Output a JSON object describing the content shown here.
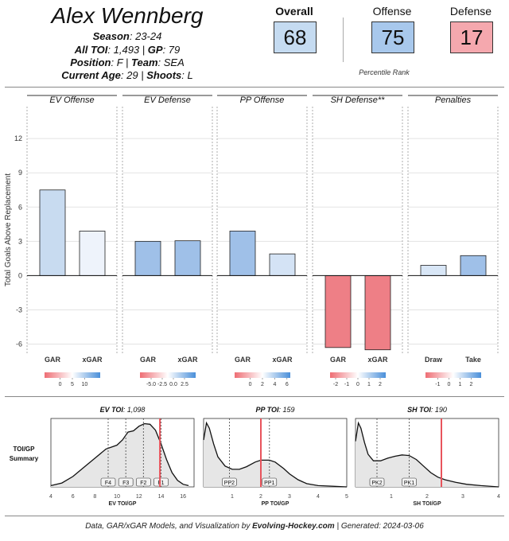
{
  "player": {
    "name": "Alex Wennberg",
    "season_label": "Season",
    "season": ": 23-24",
    "toi_label": "All TOI",
    "toi": ": 1,493 | ",
    "gp_label": "GP",
    "gp": ": 79",
    "pos_label": "Position",
    "pos": ": F | ",
    "team_label": "Team",
    "team": ": SEA",
    "age_label": "Current Age",
    "age": ": 29 | ",
    "shoots_label": "Shoots",
    "shoots": ": L"
  },
  "scores": {
    "overall_label": "Overall",
    "overall": "68",
    "offense_label": "Offense",
    "offense": "75",
    "defense_label": "Defense",
    "defense": "17",
    "percentile_caption": "Percentile Rank",
    "colors": {
      "overall": "#c5dbf1",
      "offense": "#a8c8ec",
      "defense": "#f5a8ae"
    }
  },
  "chart_data": [
    {
      "type": "bar",
      "ylabel": "Total Goals Above Replacement",
      "ylim": [
        -6.8,
        14.8
      ],
      "yticks": [
        -6,
        -3,
        0,
        3,
        6,
        9,
        12
      ],
      "panels": [
        {
          "title": "EV Offense",
          "categories": [
            "GAR",
            "xGAR"
          ],
          "values": [
            7.5,
            3.9
          ],
          "bar_colors": [
            "#c8dbf0",
            "#eef3fb"
          ],
          "legend_ticks": [
            "0",
            "5",
            "10"
          ],
          "legend_tick_pos": [
            0.28,
            0.5,
            0.72
          ]
        },
        {
          "title": "EV Defense",
          "categories": [
            "GAR",
            "xGAR"
          ],
          "values": [
            3.0,
            3.05
          ],
          "bar_colors": [
            "#9fc0e8",
            "#9fc0e8"
          ],
          "legend_ticks": [
            "-5.0",
            "-2.5",
            "0.0",
            "2.5"
          ],
          "legend_tick_pos": [
            0.2,
            0.4,
            0.6,
            0.8
          ]
        },
        {
          "title": "PP Offense",
          "categories": [
            "GAR",
            "xGAR"
          ],
          "values": [
            3.9,
            1.9
          ],
          "bar_colors": [
            "#9fc0e8",
            "#d4e3f5"
          ],
          "legend_ticks": [
            "0",
            "2",
            "4",
            "6"
          ],
          "legend_tick_pos": [
            0.28,
            0.5,
            0.72,
            0.94
          ]
        },
        {
          "title": "SH Defense**",
          "categories": [
            "GAR",
            "xGAR"
          ],
          "values": [
            -6.3,
            -6.5
          ],
          "bar_colors": [
            "#ee7f86",
            "#ee7f86"
          ],
          "legend_ticks": [
            "-2",
            "-1",
            "0",
            "1",
            "2"
          ],
          "legend_tick_pos": [
            0.1,
            0.3,
            0.5,
            0.7,
            0.9
          ]
        },
        {
          "title": "Penalties",
          "categories": [
            "Draw",
            "Take"
          ],
          "values": [
            0.9,
            1.75
          ],
          "bar_colors": [
            "#d8e6f6",
            "#9fc0e8"
          ],
          "legend_ticks": [
            "-1",
            "0",
            "1",
            "2"
          ],
          "legend_tick_pos": [
            0.22,
            0.42,
            0.62,
            0.82
          ]
        }
      ]
    },
    {
      "type": "area",
      "row_label_1": "TOI/GP",
      "row_label_2": "Summary",
      "panels": [
        {
          "title_label": "EV TOI",
          "title_value": ": 1,098",
          "xlabel": "EV TOI/GP",
          "xlim": [
            4,
            17
          ],
          "xticks": [
            4,
            6,
            8,
            10,
            12,
            14,
            16
          ],
          "player_value": 13.9,
          "curve_x": [
            4,
            5,
            6,
            7,
            8,
            9,
            10,
            10.5,
            11,
            11.5,
            12,
            12.5,
            13,
            13.5,
            14,
            14.5,
            15,
            15.5,
            16,
            16.5
          ],
          "curve_y": [
            0.02,
            0.06,
            0.16,
            0.3,
            0.44,
            0.58,
            0.64,
            0.72,
            0.84,
            0.86,
            0.93,
            0.97,
            0.96,
            0.87,
            0.66,
            0.42,
            0.22,
            0.1,
            0.04,
            0.02
          ],
          "markers": [
            {
              "label": "F4",
              "x": 9.2
            },
            {
              "label": "F3",
              "x": 10.8
            },
            {
              "label": "F2",
              "x": 12.4
            },
            {
              "label": "F1",
              "x": 14.0
            }
          ]
        },
        {
          "title_label": "PP TOI",
          "title_value": ": 159",
          "xlabel": "PP TOI/GP",
          "xlim": [
            0,
            5
          ],
          "xticks": [
            1,
            2,
            3,
            4,
            5
          ],
          "player_value": 2.0,
          "curve_x": [
            0,
            0.1,
            0.2,
            0.35,
            0.5,
            0.75,
            1.0,
            1.25,
            1.5,
            1.8,
            2.0,
            2.3,
            2.5,
            2.8,
            3.0,
            3.3,
            3.6,
            4.0,
            4.5,
            5.0
          ],
          "curve_y": [
            0.72,
            0.98,
            0.9,
            0.66,
            0.46,
            0.32,
            0.27,
            0.27,
            0.31,
            0.38,
            0.41,
            0.41,
            0.38,
            0.28,
            0.2,
            0.11,
            0.05,
            0.02,
            0.01,
            0.0
          ],
          "markers": [
            {
              "label": "PP2",
              "x": 0.9
            },
            {
              "label": "PP1",
              "x": 2.3
            }
          ]
        },
        {
          "title_label": "SH TOI",
          "title_value": ": 190",
          "xlabel": "SH TOI/GP",
          "xlim": [
            0,
            4
          ],
          "xticks": [
            1,
            2,
            3,
            4
          ],
          "player_value": 2.4,
          "curve_x": [
            0,
            0.08,
            0.15,
            0.25,
            0.35,
            0.5,
            0.7,
            0.9,
            1.1,
            1.3,
            1.5,
            1.7,
            1.9,
            2.1,
            2.3,
            2.5,
            2.8,
            3.1,
            3.5,
            4.0
          ],
          "curve_y": [
            0.7,
            0.98,
            0.9,
            0.68,
            0.5,
            0.4,
            0.4,
            0.44,
            0.47,
            0.49,
            0.48,
            0.42,
            0.32,
            0.22,
            0.15,
            0.11,
            0.07,
            0.04,
            0.02,
            0.0
          ],
          "markers": [
            {
              "label": "PK2",
              "x": 0.6
            },
            {
              "label": "PK1",
              "x": 1.5
            }
          ]
        }
      ]
    }
  ],
  "footer": {
    "prefix": "Data, GAR/xGAR Models, and Visualization by ",
    "brand": "Evolving-Hockey.com",
    "suffix": " | Generated: 2024-03-06"
  }
}
